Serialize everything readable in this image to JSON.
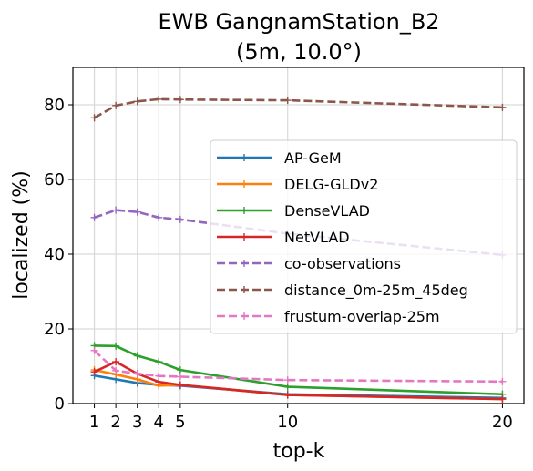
{
  "chart_data": {
    "type": "line",
    "title": "EWB GangnamStation_B2",
    "subtitle": "(5m, 10.0°)",
    "xlabel": "top-k",
    "ylabel": "localized (%)",
    "x": [
      1,
      2,
      3,
      4,
      5,
      10,
      20
    ],
    "x_ticks": [
      "1",
      "2",
      "3",
      "4",
      "5",
      "10",
      "20"
    ],
    "y_ticks": [
      "0",
      "20",
      "40",
      "60",
      "80"
    ],
    "xlim": [
      0,
      21
    ],
    "ylim": [
      0,
      90
    ],
    "grid": true,
    "legend_position": "center-right",
    "series": [
      {
        "name": "AP-GeM",
        "color": "#1f77b4",
        "dashed": false,
        "values": [
          7.5,
          6.5,
          5.5,
          5.0,
          4.8,
          2.5,
          1.5
        ]
      },
      {
        "name": "DELG-GLDv2",
        "color": "#ff7f0e",
        "dashed": false,
        "values": [
          9.0,
          7.8,
          6.5,
          4.8,
          5.0,
          2.3,
          1.2
        ]
      },
      {
        "name": "DenseVLAD",
        "color": "#2ca02c",
        "dashed": false,
        "values": [
          15.5,
          15.4,
          12.8,
          11.2,
          9.0,
          4.5,
          2.5
        ]
      },
      {
        "name": "NetVLAD",
        "color": "#d62728",
        "dashed": false,
        "values": [
          8.5,
          11.2,
          8.0,
          5.8,
          5.0,
          2.3,
          1.2
        ]
      },
      {
        "name": "co-observations",
        "color": "#9467bd",
        "dashed": true,
        "values": [
          49.8,
          51.8,
          51.3,
          49.8,
          49.3,
          45.5,
          39.8
        ]
      },
      {
        "name": "distance_0m-25m_45deg",
        "color": "#8c564b",
        "dashed": true,
        "values": [
          76.5,
          79.8,
          80.9,
          81.5,
          81.4,
          81.2,
          79.3
        ]
      },
      {
        "name": "frustum-overlap-25m",
        "color": "#e377c2",
        "dashed": true,
        "values": [
          14.2,
          8.8,
          8.0,
          7.4,
          7.2,
          6.3,
          5.9
        ]
      }
    ]
  }
}
